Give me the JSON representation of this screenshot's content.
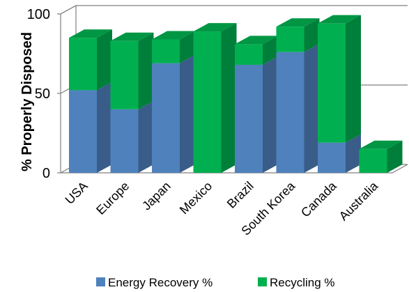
{
  "chart_data": {
    "type": "bar",
    "stacked": true,
    "three_d": true,
    "categories": [
      "USA",
      "Europe",
      "Japan",
      "Mexico",
      "Brazil",
      "South Korea",
      "Canada",
      "Australia"
    ],
    "series": [
      {
        "name": "Energy Recovery %",
        "color": "#4f81bd",
        "values": [
          52,
          40,
          69,
          0,
          68,
          76,
          19,
          0
        ]
      },
      {
        "name": "Recycling %",
        "color": "#00b050",
        "values": [
          33,
          43,
          15,
          89,
          13,
          16,
          75,
          15
        ]
      }
    ],
    "ylabel": "% Properly Disposed",
    "ylim": [
      0,
      100
    ],
    "yticks": [
      "0",
      "50",
      "100"
    ],
    "gridlines": true,
    "legend_position": "bottom"
  }
}
